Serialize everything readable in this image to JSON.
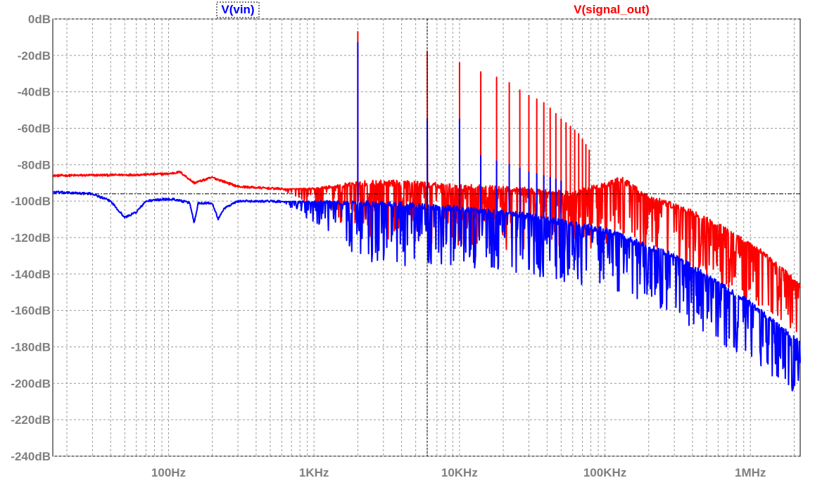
{
  "chart_data": {
    "type": "line",
    "x_scale": "log",
    "xlim": [
      16,
      2200000
    ],
    "ylim": [
      -240,
      0
    ],
    "grid": true,
    "cursor_frequency": 6000,
    "cursor_level": -96,
    "y_ticks": [
      {
        "value": 0,
        "label": "0dB"
      },
      {
        "value": -20,
        "label": "-20dB"
      },
      {
        "value": -40,
        "label": "-40dB"
      },
      {
        "value": -60,
        "label": "-60dB"
      },
      {
        "value": -80,
        "label": "-80dB"
      },
      {
        "value": -100,
        "label": "-100dB"
      },
      {
        "value": -120,
        "label": "-120dB"
      },
      {
        "value": -140,
        "label": "-140dB"
      },
      {
        "value": -160,
        "label": "-160dB"
      },
      {
        "value": -180,
        "label": "-180dB"
      },
      {
        "value": -200,
        "label": "-200dB"
      },
      {
        "value": -220,
        "label": "-220dB"
      },
      {
        "value": -240,
        "label": "-240dB"
      }
    ],
    "x_ticks": [
      {
        "value": 100,
        "label": "100Hz"
      },
      {
        "value": 1000,
        "label": "1KHz"
      },
      {
        "value": 10000,
        "label": "10KHz"
      },
      {
        "value": 100000,
        "label": "100KHz"
      },
      {
        "value": 1000000,
        "label": "1MHz"
      }
    ],
    "series": [
      {
        "name": "V(signal_out)",
        "color": "#ff0000",
        "floor": [
          [
            16,
            -86
          ],
          [
            60,
            -85.5
          ],
          [
            100,
            -85
          ],
          [
            120,
            -84
          ],
          [
            150,
            -90
          ],
          [
            200,
            -87
          ],
          [
            300,
            -92
          ],
          [
            500,
            -93
          ],
          [
            1000,
            -94
          ],
          [
            2000,
            -92
          ],
          [
            4000,
            -92
          ],
          [
            10000,
            -94
          ],
          [
            30000,
            -96
          ],
          [
            60000,
            -98
          ],
          [
            100000,
            -93
          ],
          [
            130000,
            -90
          ],
          [
            200000,
            -100
          ],
          [
            400000,
            -108
          ],
          [
            1000000,
            -125
          ],
          [
            2200000,
            -148
          ]
        ],
        "spikes": [
          [
            2000,
            -7
          ],
          [
            6000,
            -18
          ],
          [
            10000,
            -24
          ],
          [
            14000,
            -29
          ],
          [
            18000,
            -32
          ],
          [
            22000,
            -35
          ],
          [
            26000,
            -39
          ],
          [
            30000,
            -42
          ],
          [
            34000,
            -44
          ],
          [
            38000,
            -46
          ],
          [
            42000,
            -49
          ],
          [
            46000,
            -52
          ],
          [
            50000,
            -55
          ],
          [
            54000,
            -57
          ],
          [
            58000,
            -59
          ],
          [
            62000,
            -61
          ],
          [
            66000,
            -63
          ],
          [
            70000,
            -66
          ],
          [
            74000,
            -69
          ],
          [
            78000,
            -72
          ]
        ]
      },
      {
        "name": "V(vin)",
        "color": "#0000ff",
        "floor": [
          [
            16,
            -95
          ],
          [
            30,
            -96
          ],
          [
            40,
            -100
          ],
          [
            50,
            -109
          ],
          [
            60,
            -106
          ],
          [
            70,
            -100
          ],
          [
            90,
            -99
          ],
          [
            110,
            -99
          ],
          [
            140,
            -101
          ],
          [
            150,
            -112
          ],
          [
            160,
            -101
          ],
          [
            200,
            -101
          ],
          [
            220,
            -110
          ],
          [
            240,
            -104
          ],
          [
            300,
            -100
          ],
          [
            500,
            -100
          ],
          [
            1000,
            -101
          ],
          [
            2000,
            -103
          ],
          [
            4000,
            -104
          ],
          [
            10000,
            -106
          ],
          [
            30000,
            -110
          ],
          [
            100000,
            -118
          ],
          [
            300000,
            -132
          ],
          [
            1000000,
            -158
          ],
          [
            2200000,
            -180
          ]
        ],
        "spikes": [
          [
            2000,
            -13
          ],
          [
            6000,
            -55
          ],
          [
            10000,
            -55
          ],
          [
            14000,
            -75
          ],
          [
            18000,
            -78
          ],
          [
            22000,
            -80
          ],
          [
            26000,
            -82
          ],
          [
            30000,
            -84
          ],
          [
            34000,
            -85
          ],
          [
            38000,
            -86
          ],
          [
            42000,
            -87
          ],
          [
            46000,
            -88
          ],
          [
            50000,
            -89
          ]
        ]
      }
    ]
  }
}
